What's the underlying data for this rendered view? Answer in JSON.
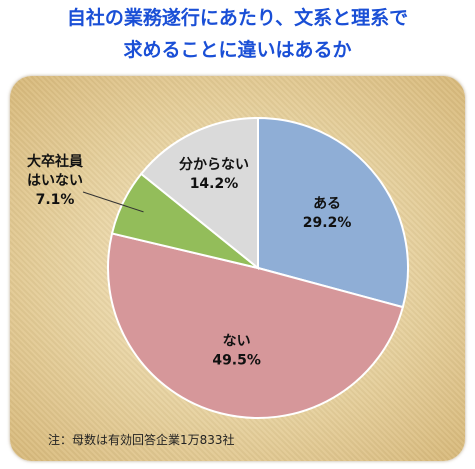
{
  "title_line1": "自社の業務遂行にあたり、文系と理系で",
  "title_line2": "求めることに違いはあるか",
  "note": "注：母数は有効回答企業1万833社",
  "colors": {
    "title": "#1a4fd6",
    "slice_blue": "#8faed6",
    "slice_red": "#d6979a",
    "slice_green": "#93bd5a",
    "slice_gray": "#dadada"
  },
  "chart_data": {
    "type": "pie",
    "title": "自社の業務遂行にあたり、文系と理系で求めることに違いはあるか",
    "slices": [
      {
        "label": "ある",
        "value": 29.2,
        "display": "29.2%",
        "color": "#8faed6"
      },
      {
        "label": "ない",
        "value": 49.5,
        "display": "49.5%",
        "color": "#d6979a"
      },
      {
        "label": "大卒社員はいない",
        "label_lines": [
          "大卒社員",
          "はいない"
        ],
        "value": 7.1,
        "display": "7.1%",
        "color": "#93bd5a"
      },
      {
        "label": "分からない",
        "value": 14.2,
        "display": "14.2%",
        "color": "#dadada"
      }
    ],
    "start": "12 o'clock",
    "direction": "clockwise",
    "legend": "none",
    "labels": "inside slices except 大卒社員はいない (outside, with leader line)"
  }
}
